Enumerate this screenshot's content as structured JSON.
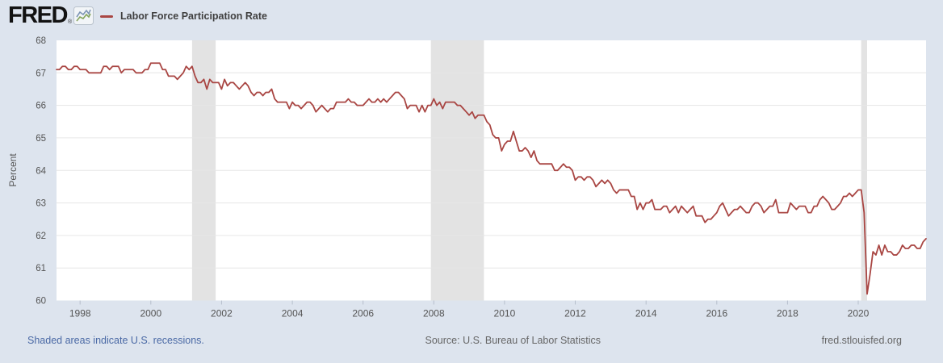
{
  "header": {
    "logo_text": "FRED",
    "logo_reg_mark": "®",
    "legend": {
      "label": "Labor Force Participation Rate",
      "series_color": "#a94643"
    }
  },
  "footer": {
    "recessions_note": "Shaded areas indicate U.S. recessions.",
    "source": "Source: U.S. Bureau of Labor Statistics",
    "site": "fred.stlouisfed.org"
  },
  "colors": {
    "background": "#dde4ee",
    "plot_background": "#ffffff",
    "gridline": "#e6e6e6",
    "recession_band": "#e3e3e3",
    "line": "#a94643",
    "axis_text": "#555555",
    "tick_mark": "#b6bfcc",
    "link_text": "#4a69a5",
    "muted_text": "#666666",
    "logo_icon_line_blue": "#7d95b5",
    "logo_icon_line_green": "#85a55e"
  },
  "chart_data": {
    "type": "line",
    "title": "Labor Force Participation Rate",
    "ylabel": "Percent",
    "unit": "percent",
    "frequency": "monthly",
    "start": "1997-05",
    "end": "2021-12",
    "ylim": [
      60,
      68
    ],
    "yticks": [
      60,
      61,
      62,
      63,
      64,
      65,
      66,
      67,
      68
    ],
    "xticks": [
      1998,
      2000,
      2002,
      2004,
      2006,
      2008,
      2010,
      2012,
      2014,
      2016,
      2018,
      2020
    ],
    "grid": "horizontal-only",
    "legend_position": "top-left",
    "recessions": [
      {
        "start": "2001-03",
        "end": "2001-11"
      },
      {
        "start": "2007-12",
        "end": "2009-06"
      },
      {
        "start": "2020-02",
        "end": "2020-04"
      }
    ],
    "values": [
      67.1,
      67.1,
      67.2,
      67.2,
      67.1,
      67.1,
      67.2,
      67.2,
      67.1,
      67.1,
      67.1,
      67.0,
      67.0,
      67.0,
      67.0,
      67.0,
      67.2,
      67.2,
      67.1,
      67.2,
      67.2,
      67.2,
      67.0,
      67.1,
      67.1,
      67.1,
      67.1,
      67.0,
      67.0,
      67.0,
      67.1,
      67.1,
      67.3,
      67.3,
      67.3,
      67.3,
      67.1,
      67.1,
      66.9,
      66.9,
      66.9,
      66.8,
      66.9,
      67.0,
      67.2,
      67.1,
      67.2,
      66.9,
      66.7,
      66.7,
      66.8,
      66.5,
      66.8,
      66.7,
      66.7,
      66.7,
      66.5,
      66.8,
      66.6,
      66.7,
      66.7,
      66.6,
      66.5,
      66.6,
      66.7,
      66.6,
      66.4,
      66.3,
      66.4,
      66.4,
      66.3,
      66.4,
      66.4,
      66.5,
      66.2,
      66.1,
      66.1,
      66.1,
      66.1,
      65.9,
      66.1,
      66.0,
      66.0,
      65.9,
      66.0,
      66.1,
      66.1,
      66.0,
      65.8,
      65.9,
      66.0,
      65.9,
      65.8,
      65.9,
      65.9,
      66.1,
      66.1,
      66.1,
      66.1,
      66.2,
      66.1,
      66.1,
      66.0,
      66.0,
      66.0,
      66.1,
      66.2,
      66.1,
      66.1,
      66.2,
      66.1,
      66.2,
      66.1,
      66.2,
      66.3,
      66.4,
      66.4,
      66.3,
      66.2,
      65.9,
      66.0,
      66.0,
      66.0,
      65.8,
      66.0,
      65.8,
      66.0,
      66.0,
      66.2,
      66.0,
      66.1,
      65.9,
      66.1,
      66.1,
      66.1,
      66.1,
      66.0,
      66.0,
      65.9,
      65.8,
      65.7,
      65.8,
      65.6,
      65.7,
      65.7,
      65.7,
      65.5,
      65.4,
      65.1,
      65.0,
      65.0,
      64.6,
      64.8,
      64.9,
      64.9,
      65.2,
      64.9,
      64.6,
      64.6,
      64.7,
      64.6,
      64.4,
      64.6,
      64.3,
      64.2,
      64.2,
      64.2,
      64.2,
      64.2,
      64.0,
      64.0,
      64.1,
      64.2,
      64.1,
      64.1,
      64.0,
      63.7,
      63.8,
      63.8,
      63.7,
      63.8,
      63.8,
      63.7,
      63.5,
      63.6,
      63.7,
      63.6,
      63.7,
      63.6,
      63.4,
      63.3,
      63.4,
      63.4,
      63.4,
      63.4,
      63.2,
      63.2,
      62.8,
      63.0,
      62.8,
      63.0,
      63.0,
      63.1,
      62.8,
      62.8,
      62.8,
      62.9,
      62.9,
      62.7,
      62.8,
      62.9,
      62.7,
      62.9,
      62.8,
      62.7,
      62.8,
      62.9,
      62.6,
      62.6,
      62.6,
      62.4,
      62.5,
      62.5,
      62.6,
      62.7,
      62.9,
      63.0,
      62.8,
      62.6,
      62.7,
      62.8,
      62.8,
      62.9,
      62.8,
      62.7,
      62.7,
      62.9,
      63.0,
      63.0,
      62.9,
      62.7,
      62.8,
      62.9,
      62.9,
      63.1,
      62.7,
      62.7,
      62.7,
      62.7,
      63.0,
      62.9,
      62.8,
      62.9,
      62.9,
      62.9,
      62.7,
      62.7,
      62.9,
      62.9,
      63.1,
      63.2,
      63.1,
      63.0,
      62.8,
      62.8,
      62.9,
      63.0,
      63.2,
      63.2,
      63.3,
      63.2,
      63.3,
      63.4,
      63.4,
      62.7,
      60.2,
      60.8,
      61.5,
      61.4,
      61.7,
      61.4,
      61.7,
      61.5,
      61.5,
      61.4,
      61.4,
      61.5,
      61.7,
      61.6,
      61.6,
      61.7,
      61.7,
      61.6,
      61.6,
      61.8,
      61.9
    ]
  }
}
